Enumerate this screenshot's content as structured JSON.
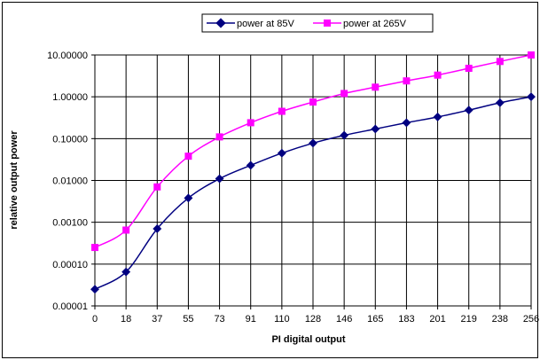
{
  "chart_data": {
    "type": "line",
    "title": "",
    "xlabel": "PI digital output",
    "ylabel": "relative output power",
    "yscale": "log",
    "ylim": [
      1e-05,
      10
    ],
    "y_ticks": [
      "10.00000",
      "1.00000",
      "0.10000",
      "0.01000",
      "0.00100",
      "0.00010",
      "0.00001"
    ],
    "categories": [
      "0",
      "18",
      "37",
      "55",
      "73",
      "91",
      "110",
      "128",
      "146",
      "165",
      "183",
      "201",
      "219",
      "238",
      "256"
    ],
    "grid": true,
    "legend_position": "top-center",
    "series": [
      {
        "name": "power at 85V",
        "color": "#000080",
        "marker": "diamond",
        "values": [
          2.5e-05,
          6.5e-05,
          0.0007,
          0.0038,
          0.011,
          0.023,
          0.045,
          0.078,
          0.12,
          0.17,
          0.24,
          0.33,
          0.48,
          0.72,
          1.0
        ]
      },
      {
        "name": "power at 265V",
        "color": "#ff00ff",
        "marker": "square",
        "values": [
          0.00025,
          0.00065,
          0.007,
          0.038,
          0.11,
          0.24,
          0.45,
          0.75,
          1.2,
          1.7,
          2.4,
          3.3,
          4.8,
          7.0,
          10.0
        ]
      }
    ]
  }
}
